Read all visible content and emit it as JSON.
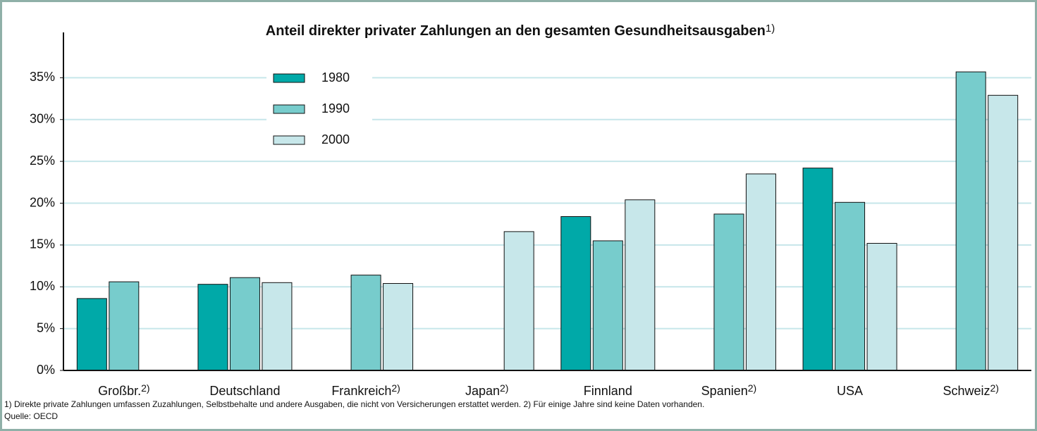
{
  "chart_data": {
    "type": "bar",
    "title": "Anteil direkter privater Zahlungen an den gesamten Gesundheitsausgaben",
    "title_note": "1)",
    "categories": [
      "Großbr.",
      "Deutschland",
      "Frankreich",
      "Japan",
      "Finnland",
      "Spanien",
      "USA",
      "Schweiz"
    ],
    "category_notes": [
      "2)",
      null,
      "2)",
      "2)",
      null,
      "2)",
      null,
      "2)"
    ],
    "series": [
      {
        "name": "1980",
        "color": "#00a9a8",
        "values": [
          8.6,
          10.3,
          null,
          null,
          18.4,
          null,
          24.2,
          null
        ]
      },
      {
        "name": "1990",
        "color": "#77cccc",
        "values": [
          10.6,
          11.1,
          11.4,
          null,
          15.5,
          18.7,
          20.1,
          35.7
        ]
      },
      {
        "name": "2000",
        "color": "#c7e7ea",
        "values": [
          null,
          10.5,
          10.4,
          16.6,
          20.4,
          23.5,
          15.2,
          32.9
        ]
      }
    ],
    "ylim": [
      0,
      40
    ],
    "yticks": [
      {
        "value": 0,
        "label": "0%"
      },
      {
        "value": 5,
        "label": "5%"
      },
      {
        "value": 10,
        "label": "10%"
      },
      {
        "value": 15,
        "label": "15%"
      },
      {
        "value": 20,
        "label": "20%"
      },
      {
        "value": 25,
        "label": "25%"
      },
      {
        "value": 30,
        "label": "30%"
      },
      {
        "value": 35,
        "label": "35%"
      }
    ],
    "grid": true,
    "legend": "upper left",
    "footnote": "1) Direkte private Zahlungen umfassen Zuzahlungen, Selbstbehalte und andere Ausgaben, die nicht von Versicherungen erstattet werden. 2) Für einige Jahre sind keine Daten vorhanden.",
    "source": "Quelle: OECD"
  }
}
